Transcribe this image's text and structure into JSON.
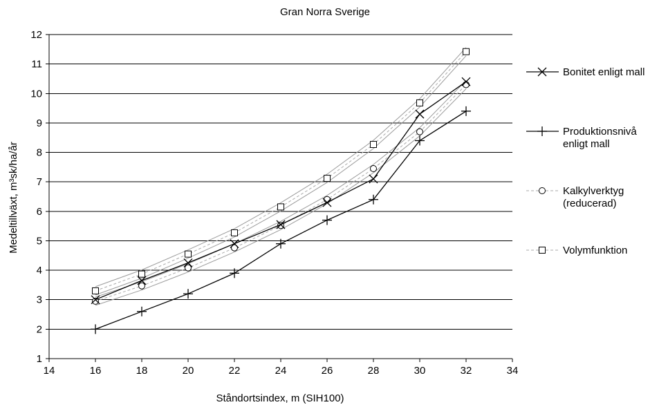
{
  "chart_data": {
    "type": "line",
    "title": "Gran Norra Sverige",
    "xlabel": "Ståndortsindex, m (SIH100)",
    "ylabel": "Medeltillväxt, m³sk/ha/år",
    "xlim": [
      14,
      34
    ],
    "ylim": [
      1,
      12
    ],
    "xticks": [
      14,
      16,
      18,
      20,
      22,
      24,
      26,
      28,
      30,
      32,
      34
    ],
    "yticks": [
      1,
      2,
      3,
      4,
      5,
      6,
      7,
      8,
      9,
      10,
      11,
      12
    ],
    "grid": "horizontal",
    "legend_position": "right",
    "x": [
      16,
      18,
      20,
      22,
      24,
      26,
      28,
      30,
      32
    ],
    "series": [
      {
        "name": "Bonitet enligt mall",
        "marker": "x",
        "line_color": "#000000",
        "values": [
          3.0,
          3.65,
          4.25,
          4.9,
          5.55,
          6.3,
          7.1,
          9.3,
          10.4
        ]
      },
      {
        "name": "Produktionsnivå enligt mall",
        "legend_lines": [
          "Produktionsnivå",
          "enligt mall"
        ],
        "marker": "plus",
        "line_color": "#000000",
        "values": [
          2.0,
          2.6,
          3.2,
          3.9,
          4.9,
          5.7,
          6.4,
          8.4,
          9.4
        ]
      },
      {
        "name": "Kalkylverktyg (reducerad)",
        "legend_lines": [
          "Kalkylverktyg",
          "(reducerad)"
        ],
        "marker": "circle",
        "line_color": "#aaaaaa",
        "band_color": "#9a9a9a",
        "values": [
          2.95,
          3.47,
          4.08,
          4.76,
          5.52,
          6.4,
          7.45,
          8.7,
          10.3
        ]
      },
      {
        "name": "Volymfunktion",
        "marker": "square",
        "line_color": "#aaaaaa",
        "band_color": "#9a9a9a",
        "values": [
          3.3,
          3.87,
          4.55,
          5.27,
          6.15,
          7.12,
          8.27,
          9.68,
          11.42
        ]
      }
    ]
  }
}
